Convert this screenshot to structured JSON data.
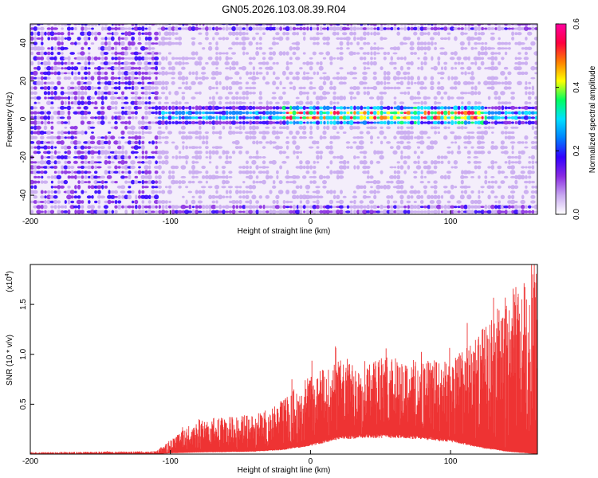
{
  "title": "GN05.2026.103.08.39.R04",
  "chart_data": [
    {
      "type": "heatmap",
      "xlabel": "Height of straight line (km)",
      "ylabel": "Frequency (Hz)",
      "xlim": [
        -200,
        162
      ],
      "ylim": [
        -50,
        50
      ],
      "x_ticks": [
        -200,
        -100,
        0,
        100
      ],
      "y_ticks": [
        -40,
        -20,
        0,
        20,
        40
      ],
      "colorbar": {
        "label": "Normalized spectral amplitude",
        "range": [
          0.0,
          0.6
        ],
        "ticks": [
          "0.0",
          "0.2",
          "0.4",
          "0.6"
        ],
        "colors": [
          "#ffffff",
          "#c8a8f0",
          "#8a2be2",
          "#3300ff",
          "#0080ff",
          "#00e0ff",
          "#00ff60",
          "#ffff00",
          "#ff7f00",
          "#ff0040",
          "#ff00a0"
        ]
      },
      "features": {
        "ridge_frequency": 0,
        "noise_region_x": [
          -200,
          -110
        ],
        "ridge_start_x": -110,
        "ridge_strong_x": [
          -20,
          125
        ]
      }
    },
    {
      "type": "line",
      "xlabel": "Height of straight line (km)",
      "ylabel": "SNR (10 * v/v)",
      "y_multiplier": "(x10",
      "y_multiplier_exp": "4",
      "y_multiplier_close": ")",
      "xlim": [
        -200,
        162
      ],
      "ylim": [
        0,
        1.9
      ],
      "x_ticks": [
        -200,
        -100,
        0,
        100
      ],
      "y_ticks": [
        "0.5",
        "1.0",
        "1.5"
      ],
      "series_color": "#ee3333",
      "envelope": [
        {
          "x": -200,
          "low": 0.0,
          "high": 0.02
        },
        {
          "x": -110,
          "low": 0.0,
          "high": 0.03
        },
        {
          "x": -100,
          "low": 0.01,
          "high": 0.15
        },
        {
          "x": -80,
          "low": 0.02,
          "high": 0.35
        },
        {
          "x": -40,
          "low": 0.03,
          "high": 0.4
        },
        {
          "x": -20,
          "low": 0.05,
          "high": 0.55
        },
        {
          "x": 0,
          "low": 0.1,
          "high": 0.8
        },
        {
          "x": 20,
          "low": 0.18,
          "high": 0.95
        },
        {
          "x": 40,
          "low": 0.2,
          "high": 0.98
        },
        {
          "x": 60,
          "low": 0.2,
          "high": 0.97
        },
        {
          "x": 80,
          "low": 0.18,
          "high": 0.95
        },
        {
          "x": 100,
          "low": 0.15,
          "high": 0.95
        },
        {
          "x": 120,
          "low": 0.08,
          "high": 1.2
        },
        {
          "x": 140,
          "low": 0.03,
          "high": 1.6
        },
        {
          "x": 162,
          "low": 0.0,
          "high": 1.9
        }
      ]
    }
  ]
}
